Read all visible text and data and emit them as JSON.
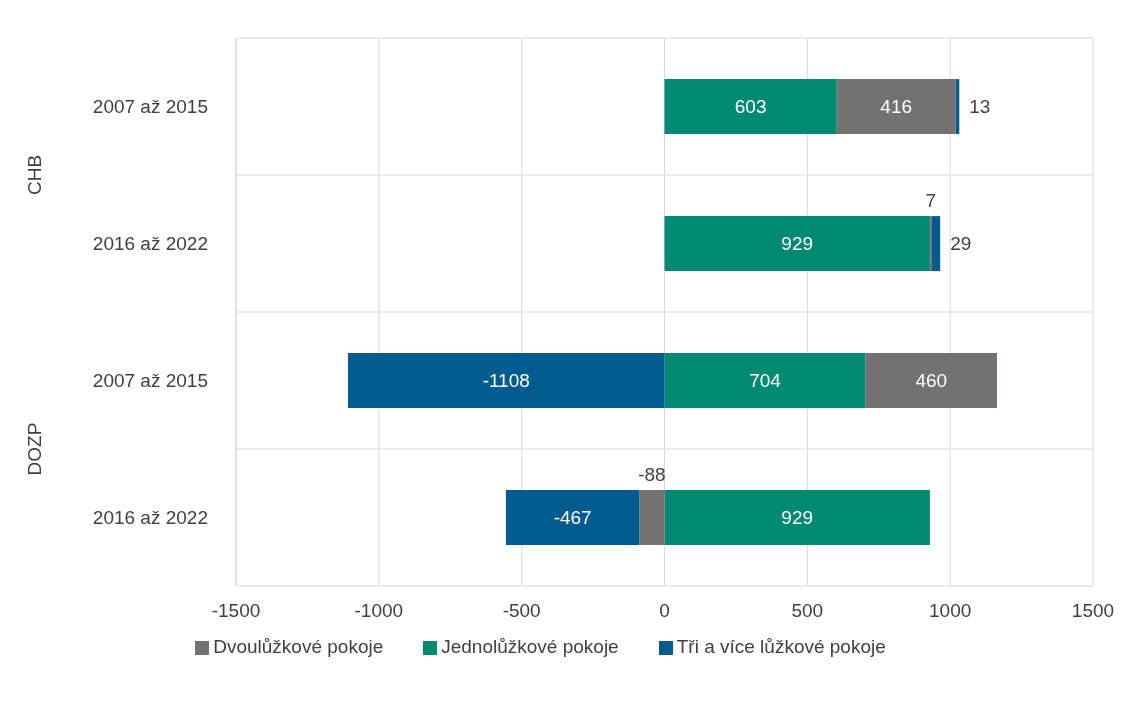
{
  "chart_data": {
    "type": "bar",
    "orientation": "horizontal",
    "stacked": true,
    "categories": [
      "2007 až 2015",
      "2016 až 2022",
      "2007 až 2015",
      "2016 až 2022"
    ],
    "annotations": [
      "CHB",
      "DOZP"
    ],
    "series": [
      {
        "name": "Jednolůžkové pokoje",
        "color": "#008a72",
        "values": [
          603,
          929,
          704,
          929
        ]
      },
      {
        "name": "Dvoulůžkové pokoje",
        "color": "#767171",
        "values": [
          416,
          7,
          460,
          -88
        ]
      },
      {
        "name": "Tři a více lůžkové pokoje",
        "color": "#005b8e",
        "values": [
          13,
          29,
          -1108,
          -467
        ]
      }
    ],
    "xlim": [
      -1500,
      1500
    ],
    "xticks": [
      -1500,
      -1000,
      -500,
      0,
      500,
      1000,
      1500
    ],
    "grid": true,
    "legend": "bottom",
    "data_labels": true
  }
}
